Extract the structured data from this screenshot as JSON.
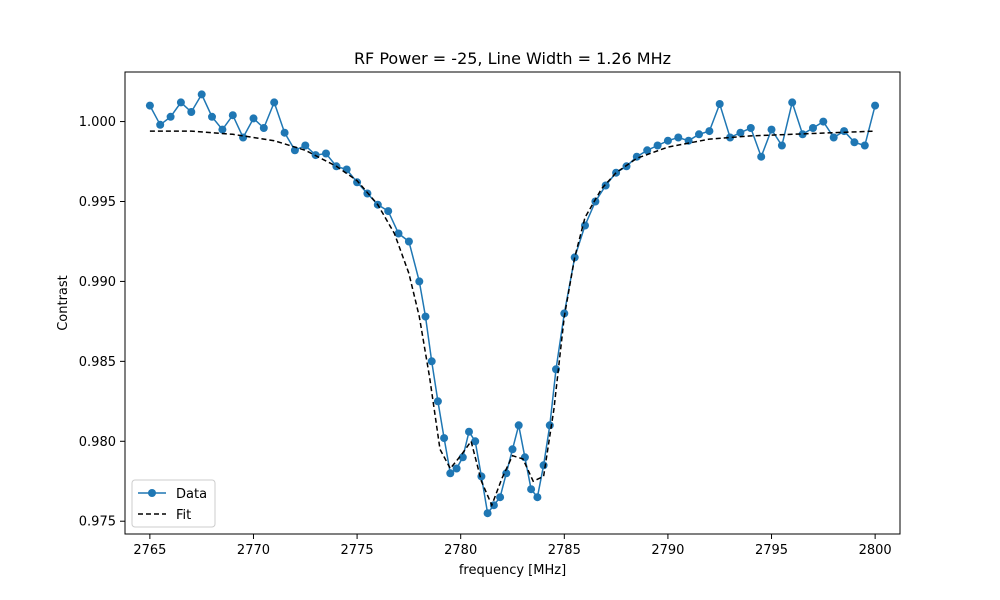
{
  "chart_data": {
    "type": "line",
    "title": "RF Power = -25, Line Width = 1.26 MHz",
    "xlabel": "frequency [MHz]",
    "ylabel": "Contrast",
    "xlim": [
      2763.8,
      2801.2
    ],
    "ylim": [
      0.9742,
      1.0031
    ],
    "xticks": [
      2765,
      2770,
      2775,
      2780,
      2785,
      2790,
      2795,
      2800
    ],
    "xtick_labels": [
      "2765",
      "2770",
      "2775",
      "2780",
      "2785",
      "2790",
      "2795",
      "2800"
    ],
    "yticks": [
      0.975,
      0.98,
      0.985,
      0.99,
      0.995,
      1.0
    ],
    "ytick_labels": [
      "0.975",
      "0.980",
      "0.985",
      "0.990",
      "0.995",
      "1.000"
    ],
    "grid": false,
    "legend": {
      "position": "lower left",
      "entries": [
        "Data",
        "Fit"
      ]
    },
    "series": [
      {
        "name": "Data",
        "style": "solid line with circle markers",
        "color": "#1f77b4",
        "x": [
          2765.0,
          2765.5,
          2766.0,
          2766.5,
          2767.0,
          2767.5,
          2768.0,
          2768.5,
          2769.0,
          2769.5,
          2770.0,
          2770.5,
          2771.0,
          2771.5,
          2772.0,
          2772.5,
          2773.0,
          2773.5,
          2774.0,
          2774.5,
          2775.0,
          2775.5,
          2776.0,
          2776.5,
          2777.0,
          2777.5,
          2778.0,
          2778.3,
          2778.6,
          2778.9,
          2779.2,
          2779.5,
          2779.8,
          2780.1,
          2780.4,
          2780.7,
          2781.0,
          2781.3,
          2781.6,
          2781.9,
          2782.2,
          2782.5,
          2782.8,
          2783.1,
          2783.4,
          2783.7,
          2784.0,
          2784.3,
          2784.6,
          2785.0,
          2785.5,
          2786.0,
          2786.5,
          2787.0,
          2787.5,
          2788.0,
          2788.5,
          2789.0,
          2789.5,
          2790.0,
          2790.5,
          2791.0,
          2791.5,
          2792.0,
          2792.5,
          2793.0,
          2793.5,
          2794.0,
          2794.5,
          2795.0,
          2795.5,
          2796.0,
          2796.5,
          2797.0,
          2797.5,
          2798.0,
          2798.5,
          2799.0,
          2799.5,
          2800.0
        ],
        "y": [
          1.001,
          0.9998,
          1.0003,
          1.0012,
          1.0006,
          1.0017,
          1.0003,
          0.9995,
          1.0004,
          0.999,
          1.0002,
          0.9996,
          1.0012,
          0.9993,
          0.9982,
          0.9985,
          0.9979,
          0.998,
          0.9972,
          0.997,
          0.9962,
          0.9955,
          0.9948,
          0.9944,
          0.993,
          0.9925,
          0.99,
          0.9878,
          0.985,
          0.9825,
          0.9802,
          0.978,
          0.9783,
          0.979,
          0.9806,
          0.98,
          0.9778,
          0.9755,
          0.976,
          0.9765,
          0.978,
          0.9795,
          0.981,
          0.979,
          0.977,
          0.9765,
          0.9785,
          0.981,
          0.9845,
          0.988,
          0.9915,
          0.9935,
          0.995,
          0.996,
          0.9968,
          0.9972,
          0.9978,
          0.9982,
          0.9985,
          0.9988,
          0.999,
          0.9988,
          0.9992,
          0.9994,
          1.0011,
          0.999,
          0.9993,
          0.9996,
          0.9978,
          0.9995,
          0.9985,
          1.0012,
          0.9992,
          0.9996,
          1.0,
          0.999,
          0.9994,
          0.9987,
          0.9985,
          1.001
        ]
      },
      {
        "name": "Fit",
        "style": "dashed",
        "color": "#000000",
        "x": [
          2765.0,
          2767.0,
          2769.0,
          2771.0,
          2772.5,
          2774.0,
          2775.0,
          2776.0,
          2776.8,
          2777.5,
          2778.0,
          2778.5,
          2779.0,
          2779.5,
          2780.0,
          2780.5,
          2781.0,
          2781.5,
          2782.0,
          2782.5,
          2783.0,
          2783.5,
          2784.0,
          2784.5,
          2785.0,
          2785.5,
          2786.0,
          2786.8,
          2787.5,
          2788.5,
          2790.0,
          2792.0,
          2794.0,
          2796.0,
          2798.0,
          2800.0
        ],
        "y": [
          0.9994,
          0.9994,
          0.9992,
          0.9988,
          0.9982,
          0.9972,
          0.9963,
          0.9948,
          0.993,
          0.9905,
          0.9878,
          0.984,
          0.9795,
          0.9783,
          0.9791,
          0.98,
          0.9775,
          0.976,
          0.9777,
          0.9791,
          0.9789,
          0.9775,
          0.9778,
          0.982,
          0.9878,
          0.9915,
          0.994,
          0.9958,
          0.9968,
          0.9977,
          0.9984,
          0.9989,
          0.9991,
          0.9992,
          0.9993,
          0.9994
        ]
      }
    ]
  }
}
